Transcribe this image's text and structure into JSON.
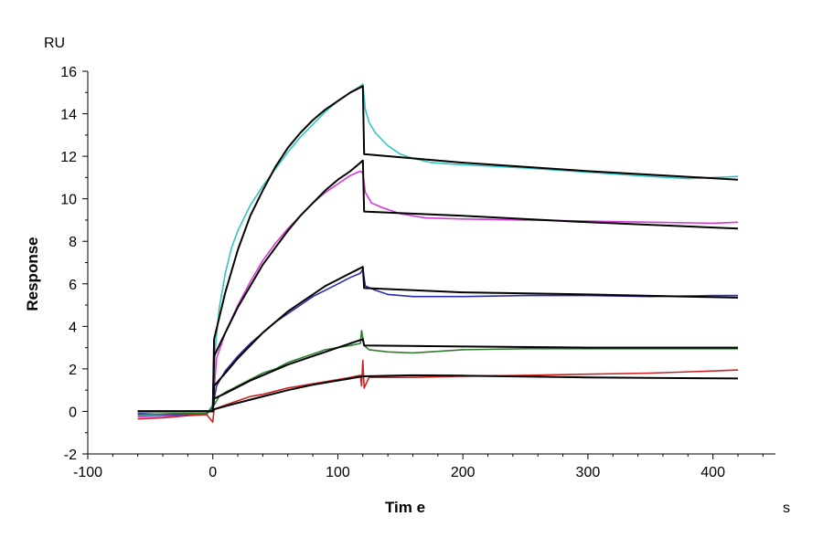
{
  "chart_data": {
    "type": "line",
    "title": "",
    "xlabel": "Tim e",
    "ylabel": "Response",
    "x_unit": "s",
    "y_unit": "RU",
    "xlim": [
      -100,
      450
    ],
    "ylim": [
      -2,
      16
    ],
    "x_ticks": [
      -100,
      0,
      100,
      200,
      300,
      400
    ],
    "y_ticks": [
      -2,
      0,
      2,
      4,
      6,
      8,
      10,
      12,
      14,
      16
    ],
    "grid": false,
    "legend": "none",
    "series": [
      {
        "kind": "measured",
        "color": "#33c5c5",
        "points": [
          [
            -60,
            -0.2
          ],
          [
            -30,
            -0.15
          ],
          [
            -5,
            -0.1
          ],
          [
            0,
            0.3
          ],
          [
            2,
            3.0
          ],
          [
            5,
            4.8
          ],
          [
            10,
            6.5
          ],
          [
            15,
            7.7
          ],
          [
            20,
            8.5
          ],
          [
            30,
            9.7
          ],
          [
            40,
            10.6
          ],
          [
            50,
            11.4
          ],
          [
            60,
            12.2
          ],
          [
            70,
            12.9
          ],
          [
            80,
            13.5
          ],
          [
            90,
            14.1
          ],
          [
            100,
            14.6
          ],
          [
            110,
            15.0
          ],
          [
            118,
            15.3
          ],
          [
            120,
            15.4
          ],
          [
            122,
            14.2
          ],
          [
            125,
            13.6
          ],
          [
            130,
            13.1
          ],
          [
            140,
            12.5
          ],
          [
            150,
            12.1
          ],
          [
            160,
            11.9
          ],
          [
            175,
            11.7
          ],
          [
            200,
            11.6
          ],
          [
            250,
            11.45
          ],
          [
            300,
            11.25
          ],
          [
            350,
            11.05
          ],
          [
            380,
            10.95
          ],
          [
            400,
            11.0
          ],
          [
            420,
            11.05
          ]
        ]
      },
      {
        "kind": "measured",
        "color": "#d63ad6",
        "points": [
          [
            -60,
            -0.25
          ],
          [
            -30,
            -0.2
          ],
          [
            -5,
            -0.15
          ],
          [
            0,
            0.2
          ],
          [
            3,
            2.5
          ],
          [
            10,
            3.7
          ],
          [
            20,
            5.0
          ],
          [
            30,
            6.1
          ],
          [
            40,
            7.1
          ],
          [
            50,
            7.9
          ],
          [
            60,
            8.6
          ],
          [
            70,
            9.2
          ],
          [
            80,
            9.8
          ],
          [
            90,
            10.3
          ],
          [
            100,
            10.7
          ],
          [
            110,
            11.1
          ],
          [
            118,
            11.3
          ],
          [
            120,
            11.2
          ],
          [
            122,
            10.3
          ],
          [
            127,
            9.8
          ],
          [
            135,
            9.6
          ],
          [
            150,
            9.3
          ],
          [
            170,
            9.1
          ],
          [
            200,
            9.05
          ],
          [
            250,
            9.0
          ],
          [
            300,
            8.95
          ],
          [
            350,
            8.9
          ],
          [
            400,
            8.85
          ],
          [
            420,
            8.9
          ]
        ]
      },
      {
        "kind": "measured",
        "color": "#2b2bb0",
        "points": [
          [
            -60,
            -0.1
          ],
          [
            -30,
            -0.15
          ],
          [
            -5,
            -0.1
          ],
          [
            0,
            0.2
          ],
          [
            3,
            1.2
          ],
          [
            10,
            1.9
          ],
          [
            20,
            2.6
          ],
          [
            30,
            3.2
          ],
          [
            40,
            3.7
          ],
          [
            50,
            4.2
          ],
          [
            60,
            4.6
          ],
          [
            70,
            5.0
          ],
          [
            80,
            5.4
          ],
          [
            90,
            5.7
          ],
          [
            100,
            6.0
          ],
          [
            110,
            6.3
          ],
          [
            118,
            6.5
          ],
          [
            120,
            6.7
          ],
          [
            122,
            5.9
          ],
          [
            130,
            5.7
          ],
          [
            140,
            5.5
          ],
          [
            160,
            5.4
          ],
          [
            200,
            5.4
          ],
          [
            250,
            5.45
          ],
          [
            300,
            5.45
          ],
          [
            350,
            5.4
          ],
          [
            400,
            5.45
          ],
          [
            420,
            5.45
          ]
        ]
      },
      {
        "kind": "measured",
        "color": "#2e7d2e",
        "points": [
          [
            -60,
            -0.15
          ],
          [
            -30,
            -0.1
          ],
          [
            -5,
            -0.1
          ],
          [
            0,
            0.2
          ],
          [
            5,
            0.7
          ],
          [
            10,
            0.9
          ],
          [
            20,
            1.2
          ],
          [
            30,
            1.5
          ],
          [
            40,
            1.8
          ],
          [
            50,
            2.0
          ],
          [
            60,
            2.3
          ],
          [
            70,
            2.5
          ],
          [
            80,
            2.7
          ],
          [
            90,
            2.9
          ],
          [
            100,
            3.0
          ],
          [
            110,
            3.1
          ],
          [
            118,
            3.2
          ],
          [
            119,
            3.8
          ],
          [
            121,
            3.1
          ],
          [
            125,
            2.9
          ],
          [
            140,
            2.8
          ],
          [
            160,
            2.75
          ],
          [
            200,
            2.9
          ],
          [
            250,
            2.95
          ],
          [
            300,
            2.95
          ],
          [
            350,
            2.95
          ],
          [
            400,
            2.95
          ],
          [
            420,
            2.95
          ]
        ]
      },
      {
        "kind": "measured",
        "color": "#cc2222",
        "points": [
          [
            -60,
            -0.35
          ],
          [
            -40,
            -0.3
          ],
          [
            -20,
            -0.2
          ],
          [
            -5,
            -0.15
          ],
          [
            0,
            -0.5
          ],
          [
            1,
            0.1
          ],
          [
            10,
            0.3
          ],
          [
            20,
            0.5
          ],
          [
            30,
            0.7
          ],
          [
            40,
            0.8
          ],
          [
            50,
            0.95
          ],
          [
            60,
            1.1
          ],
          [
            70,
            1.2
          ],
          [
            80,
            1.3
          ],
          [
            90,
            1.4
          ],
          [
            100,
            1.5
          ],
          [
            110,
            1.6
          ],
          [
            118,
            1.7
          ],
          [
            119,
            1.2
          ],
          [
            120,
            2.4
          ],
          [
            121,
            1.1
          ],
          [
            125,
            1.6
          ],
          [
            140,
            1.6
          ],
          [
            160,
            1.6
          ],
          [
            200,
            1.65
          ],
          [
            250,
            1.7
          ],
          [
            300,
            1.75
          ],
          [
            350,
            1.8
          ],
          [
            400,
            1.9
          ],
          [
            420,
            1.95
          ]
        ]
      },
      {
        "kind": "fit",
        "color": "#000000",
        "points": [
          [
            -60,
            0.0
          ],
          [
            0,
            0.0
          ],
          [
            1,
            3.4
          ],
          [
            10,
            5.6
          ],
          [
            20,
            7.6
          ],
          [
            30,
            9.2
          ],
          [
            40,
            10.4
          ],
          [
            50,
            11.5
          ],
          [
            60,
            12.4
          ],
          [
            70,
            13.1
          ],
          [
            80,
            13.7
          ],
          [
            90,
            14.2
          ],
          [
            100,
            14.6
          ],
          [
            110,
            15.0
          ],
          [
            120,
            15.3
          ],
          [
            121,
            12.1
          ],
          [
            200,
            11.7
          ],
          [
            300,
            11.3
          ],
          [
            420,
            10.9
          ]
        ]
      },
      {
        "kind": "fit",
        "color": "#000000",
        "points": [
          [
            -60,
            0.0
          ],
          [
            0,
            0.0
          ],
          [
            1,
            2.6
          ],
          [
            10,
            3.7
          ],
          [
            20,
            4.9
          ],
          [
            30,
            5.9
          ],
          [
            40,
            6.9
          ],
          [
            50,
            7.7
          ],
          [
            60,
            8.5
          ],
          [
            70,
            9.2
          ],
          [
            80,
            9.8
          ],
          [
            90,
            10.4
          ],
          [
            100,
            10.9
          ],
          [
            110,
            11.3
          ],
          [
            120,
            11.8
          ],
          [
            121,
            9.4
          ],
          [
            200,
            9.2
          ],
          [
            300,
            8.9
          ],
          [
            420,
            8.6
          ]
        ]
      },
      {
        "kind": "fit",
        "color": "#000000",
        "points": [
          [
            -60,
            0.0
          ],
          [
            0,
            0.0
          ],
          [
            1,
            1.2
          ],
          [
            10,
            1.8
          ],
          [
            20,
            2.5
          ],
          [
            30,
            3.1
          ],
          [
            40,
            3.7
          ],
          [
            50,
            4.2
          ],
          [
            60,
            4.7
          ],
          [
            70,
            5.1
          ],
          [
            80,
            5.5
          ],
          [
            90,
            5.9
          ],
          [
            100,
            6.2
          ],
          [
            110,
            6.5
          ],
          [
            120,
            6.8
          ],
          [
            121,
            5.8
          ],
          [
            200,
            5.6
          ],
          [
            300,
            5.5
          ],
          [
            420,
            5.35
          ]
        ]
      },
      {
        "kind": "fit",
        "color": "#000000",
        "points": [
          [
            -60,
            0.0
          ],
          [
            0,
            0.0
          ],
          [
            1,
            0.6
          ],
          [
            10,
            0.85
          ],
          [
            20,
            1.15
          ],
          [
            30,
            1.45
          ],
          [
            40,
            1.7
          ],
          [
            50,
            1.95
          ],
          [
            60,
            2.2
          ],
          [
            70,
            2.4
          ],
          [
            80,
            2.6
          ],
          [
            90,
            2.8
          ],
          [
            100,
            3.0
          ],
          [
            110,
            3.2
          ],
          [
            120,
            3.4
          ],
          [
            121,
            3.1
          ],
          [
            200,
            3.05
          ],
          [
            300,
            3.0
          ],
          [
            420,
            3.0
          ]
        ]
      },
      {
        "kind": "fit",
        "color": "#000000",
        "points": [
          [
            -60,
            0.0
          ],
          [
            0,
            0.0
          ],
          [
            1,
            0.1
          ],
          [
            20,
            0.4
          ],
          [
            40,
            0.7
          ],
          [
            60,
            1.0
          ],
          [
            80,
            1.25
          ],
          [
            100,
            1.45
          ],
          [
            120,
            1.65
          ],
          [
            160,
            1.7
          ],
          [
            200,
            1.68
          ],
          [
            300,
            1.6
          ],
          [
            420,
            1.55
          ]
        ]
      }
    ]
  }
}
